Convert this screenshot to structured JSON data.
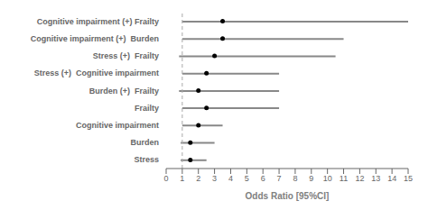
{
  "chart_data": {
    "type": "forest",
    "orientation": "horizontal",
    "categories": [
      "Cognitive impairment (+) Frailty",
      "Cognitive impairment (+)  Burden",
      "Stress (+)  Frailty",
      "Stress (+)  Cognitive impairment",
      "Burden (+)  Frailty",
      "Frailty",
      "Cognitive impairment",
      "Burden",
      "Stress"
    ],
    "values": [
      3.5,
      3.5,
      3.0,
      2.5,
      2.0,
      2.5,
      2.0,
      1.5,
      1.5
    ],
    "ci_lower": [
      1.0,
      1.0,
      0.8,
      1.0,
      0.8,
      1.0,
      1.0,
      0.9,
      0.9
    ],
    "ci_upper": [
      15.0,
      11.0,
      10.5,
      7.0,
      7.0,
      7.0,
      3.5,
      3.0,
      2.5
    ],
    "ci_color": "#888888",
    "color": "#000000",
    "xlabel": "Odds Ratio [95%CI]",
    "xlim": [
      0,
      15
    ],
    "xticks": [
      0,
      1,
      2,
      3,
      4,
      5,
      6,
      7,
      8,
      9,
      10,
      11,
      12,
      13,
      14,
      15
    ],
    "reference_line": {
      "value": 1.0,
      "color": "#aaaaaa",
      "line_style": "dashed"
    },
    "grid": false
  }
}
